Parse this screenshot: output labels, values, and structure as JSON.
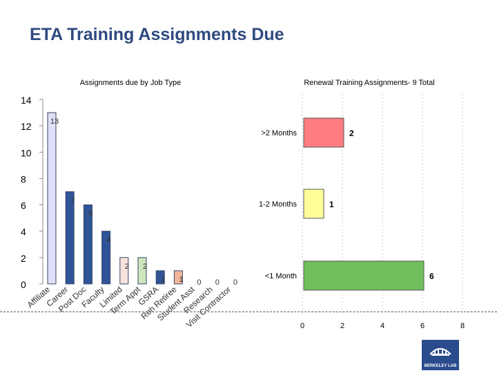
{
  "slide_title": "ETA Training Assignments Due",
  "logo_text": "BERKELEY LAB",
  "chart_data": [
    {
      "type": "bar",
      "title": "Assignments due by Job Type",
      "categories": [
        "Affiliate",
        "Career",
        "Post Doc",
        "Faculty",
        "Limited",
        "Term Appt",
        "GSRA",
        "Reh Retiree",
        "Student Asst",
        "Research",
        "Visit Contractor"
      ],
      "values": [
        13,
        7,
        6,
        4,
        2,
        2,
        1,
        1,
        0,
        0,
        0
      ],
      "value_labels": [
        "13",
        "7",
        "6",
        "4",
        "2",
        "2",
        "1",
        "1",
        "0",
        "0",
        "0"
      ],
      "ylim": [
        0,
        14
      ],
      "yticks": [
        "0",
        "2",
        "4",
        "6",
        "8",
        "10",
        "12",
        "14"
      ],
      "colors": [
        "#e0e0f8",
        "#2f5597",
        "#2f5597",
        "#2f5597",
        "#f8e4de",
        "#cfe6bd",
        "#2f5597",
        "#f4b79a",
        "#dddddd",
        "#dddddd",
        "#dddddd"
      ],
      "grid": false,
      "xlabel": "",
      "ylabel": ""
    },
    {
      "type": "bar",
      "orientation": "horizontal",
      "title": "Renewal Training Assignments- 9 Total",
      "categories": [
        ">2 Months",
        "1-2 Months",
        "<1 Month"
      ],
      "values": [
        2,
        1,
        6
      ],
      "value_labels": [
        "2",
        "1",
        "6"
      ],
      "xlim": [
        0,
        8
      ],
      "xticks": [
        "0",
        "2",
        "4",
        "6",
        "8"
      ],
      "colors": [
        "#ff7c80",
        "#ffff99",
        "#70bf5a"
      ],
      "grid": true,
      "xlabel": "",
      "ylabel": ""
    }
  ]
}
